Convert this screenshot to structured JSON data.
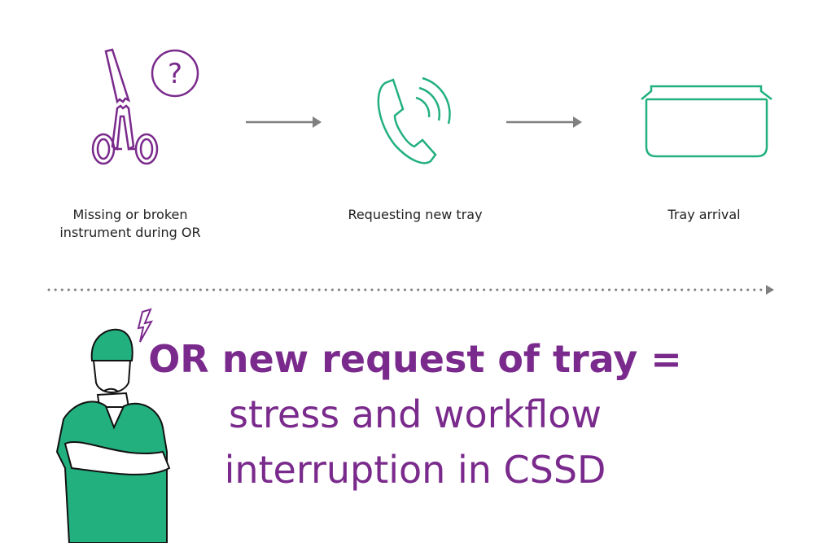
{
  "colors": {
    "purple": "#7a2a8c",
    "green": "#22b07f",
    "arrow": "#808080"
  },
  "steps": [
    {
      "icon": "broken-clamp-question-icon",
      "label_line1": "Missing or broken",
      "label_line2": "instrument during OR"
    },
    {
      "icon": "phone-ringing-icon",
      "label": "Requesting new tray"
    },
    {
      "icon": "tray-icon",
      "label": "Tray arrival"
    }
  ],
  "headline": {
    "line1": "OR new request of tray =",
    "line2": "stress and workflow",
    "line3": "interruption in CSSD"
  },
  "figure": {
    "icon": "stressed-surgeon-illustration"
  }
}
